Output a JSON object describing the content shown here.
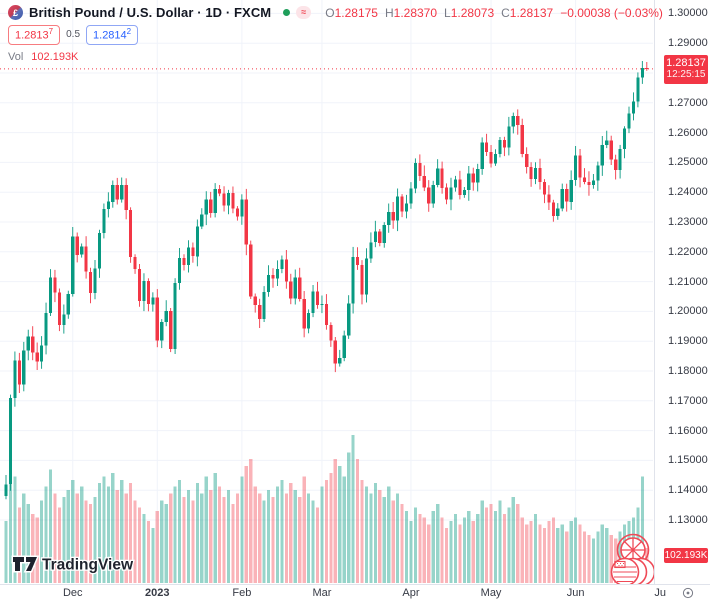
{
  "header": {
    "symbol_title": "British Pound / U.S. Dollar · 1D · FXCM",
    "pair_short": "£",
    "ohlc": {
      "o_label": "O",
      "o": "1.28175",
      "h_label": "H",
      "h": "1.28370",
      "l_label": "L",
      "l": "1.28073",
      "c_label": "C",
      "c": "1.28137",
      "change": "−0.00038 (−0.03%)"
    },
    "bid_main": "1.2813",
    "bid_sup": "7",
    "spread": "0.5",
    "ask_main": "1.2814",
    "ask_sup": "2",
    "vol_label": "Vol",
    "vol_value": "102.193K"
  },
  "price_axis": {
    "ticks": [
      "1.30000",
      "1.29000",
      "1.28000",
      "1.27000",
      "1.26000",
      "1.25000",
      "1.24000",
      "1.23000",
      "1.22000",
      "1.21000",
      "1.20000",
      "1.19000",
      "1.18000",
      "1.17000",
      "1.16000",
      "1.15000",
      "1.14000",
      "1.13000"
    ],
    "last_price_label": "1.28137",
    "countdown": "12:25:15",
    "volume_badge": "102.193K"
  },
  "time_axis": {
    "labels": [
      "Dec",
      "2023",
      "Feb",
      "Mar",
      "Apr",
      "May",
      "Jun",
      "Ju"
    ],
    "year_label": "2023"
  },
  "watermark": "TradingView",
  "colors": {
    "up": "#089981",
    "down": "#f23645",
    "vol_up": "rgba(8,153,129,0.42)",
    "vol_down": "rgba(242,54,69,0.38)",
    "grid": "#f0f3fa",
    "axis_text": "#363a45",
    "badge": "#f23645",
    "ask_blue": "#2962ff",
    "doodle": "#ef4a57"
  },
  "chart_data": {
    "type": "candlestick+volume",
    "title": "British Pound / U.S. Dollar",
    "timeframe": "1D",
    "exchange": "FXCM",
    "price_range": [
      1.13,
      1.3
    ],
    "grid": true,
    "current_price": 1.28137,
    "current_price_line": "dotted-red",
    "last": {
      "open": 1.28175,
      "high": 1.2837,
      "low": 1.28073,
      "close": 1.28137,
      "change": -0.00038,
      "change_pct": -0.03
    },
    "volume_display_k": 102.193,
    "x_labels": [
      "Dec",
      "2023",
      "Feb",
      "Mar",
      "Apr",
      "May",
      "Jun",
      "Ju"
    ],
    "month_start_indices": [
      15,
      34,
      53,
      71,
      91,
      109,
      128,
      147
    ],
    "closes": [
      1.142,
      1.171,
      1.1835,
      1.1755,
      1.1868,
      1.1915,
      1.1862,
      1.1832,
      1.1886,
      1.1995,
      1.2113,
      1.2063,
      1.1955,
      1.1989,
      1.2058,
      1.2252,
      1.219,
      1.2218,
      1.2133,
      1.2062,
      1.2144,
      1.2263,
      1.2343,
      1.2368,
      1.2425,
      1.2376,
      1.2425,
      1.234,
      1.2182,
      1.2143,
      1.2035,
      1.2102,
      1.2024,
      1.2046,
      1.1902,
      1.1965,
      1.2002,
      1.1874,
      1.2095,
      1.218,
      1.2155,
      1.2215,
      1.2185,
      1.2285,
      1.2325,
      1.2375,
      1.233,
      1.241,
      1.2395,
      1.2355,
      1.2398,
      1.2345,
      1.2318,
      1.2376,
      1.2224,
      1.205,
      1.2022,
      1.1975,
      1.2065,
      1.2122,
      1.211,
      1.2143,
      1.2175,
      1.21,
      1.2043,
      1.2113,
      1.2042,
      1.1943,
      1.1995,
      1.2066,
      1.2021,
      1.2025,
      1.1955,
      1.1902,
      1.1825,
      1.1843,
      1.192,
      1.2027,
      1.2183,
      1.2155,
      1.2057,
      1.2178,
      1.2232,
      1.2268,
      1.223,
      1.229,
      1.2333,
      1.2305,
      1.2385,
      1.2335,
      1.2362,
      1.2412,
      1.2498,
      1.2455,
      1.2415,
      1.2362,
      1.2425,
      1.248,
      1.2415,
      1.2375,
      1.2415,
      1.2443,
      1.239,
      1.2407,
      1.2463,
      1.2432,
      1.2478,
      1.2567,
      1.2535,
      1.2497,
      1.2528,
      1.2575,
      1.255,
      1.262,
      1.2655,
      1.2625,
      1.2528,
      1.2485,
      1.2445,
      1.2482,
      1.2435,
      1.2392,
      1.2365,
      1.232,
      1.2345,
      1.241,
      1.2368,
      1.2441,
      1.2524,
      1.245,
      1.2435,
      1.2424,
      1.244,
      1.249,
      1.2558,
      1.2573,
      1.251,
      1.2475,
      1.2545,
      1.2613,
      1.2664,
      1.2705,
      1.2785,
      1.28175,
      1.28137
    ],
    "volumes_k": [
      180,
      340,
      310,
      220,
      260,
      230,
      200,
      190,
      240,
      280,
      330,
      260,
      220,
      250,
      270,
      300,
      260,
      280,
      240,
      230,
      250,
      290,
      310,
      280,
      320,
      270,
      300,
      260,
      290,
      240,
      220,
      200,
      180,
      160,
      210,
      240,
      230,
      260,
      280,
      300,
      250,
      270,
      240,
      290,
      260,
      310,
      270,
      320,
      280,
      250,
      270,
      230,
      260,
      310,
      340,
      360,
      280,
      260,
      240,
      270,
      250,
      280,
      300,
      260,
      290,
      270,
      250,
      310,
      260,
      240,
      220,
      280,
      300,
      320,
      360,
      340,
      310,
      380,
      430,
      360,
      300,
      280,
      260,
      290,
      270,
      250,
      280,
      240,
      260,
      230,
      210,
      180,
      220,
      200,
      190,
      170,
      210,
      230,
      190,
      160,
      180,
      200,
      170,
      190,
      210,
      180,
      200,
      240,
      220,
      230,
      210,
      240,
      200,
      220,
      250,
      230,
      190,
      170,
      180,
      200,
      170,
      160,
      180,
      190,
      160,
      170,
      150,
      180,
      190,
      170,
      150,
      140,
      130,
      150,
      170,
      160,
      140,
      130,
      150,
      170,
      180,
      190,
      220,
      310,
      102
    ]
  }
}
